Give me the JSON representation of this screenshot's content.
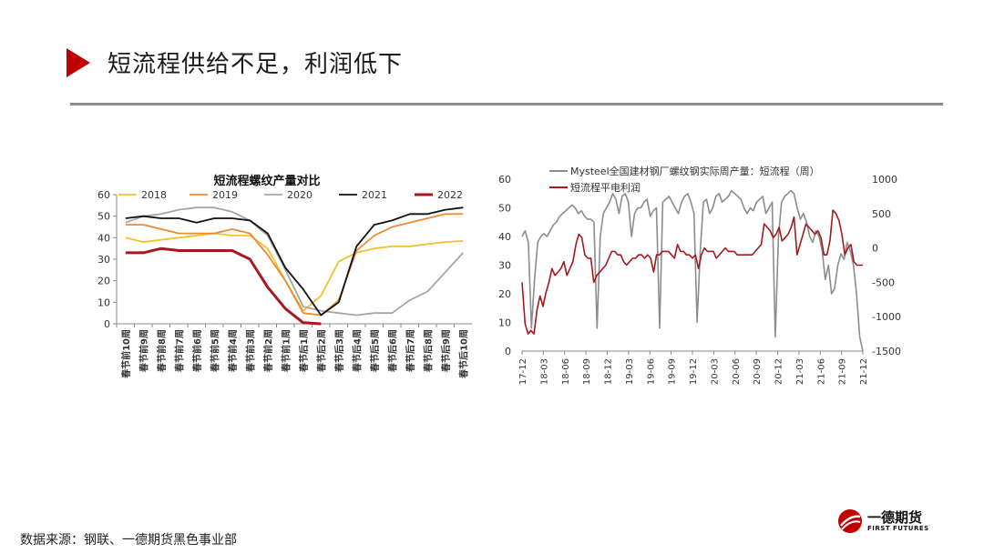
{
  "page": {
    "title": "短流程供给不足，利润低下",
    "source": "数据来源：钢联、一德期货黑色事业部"
  },
  "logo": {
    "cn": "一德期货",
    "en": "FIRST FUTURES"
  },
  "colors": {
    "accent": "#c00000",
    "rule": "#8c8c8c"
  },
  "chart_data": [
    {
      "type": "line",
      "title": "短流程螺纹产量对比",
      "categories": [
        "春节前10周",
        "春节前9周",
        "春节前8周",
        "春节前7周",
        "春节前6周",
        "春节前5周",
        "春节前4周",
        "春节前3周",
        "春节前2周",
        "春节前1周",
        "春节后1周",
        "春节后2周",
        "春节后3周",
        "春节后4周",
        "春节后5周",
        "春节后6周",
        "春节后7周",
        "春节后8周",
        "春节后9周",
        "春节后10周"
      ],
      "ylim": [
        0,
        60
      ],
      "yticks": [
        0,
        10,
        20,
        30,
        40,
        50,
        60
      ],
      "legend_position": "top",
      "series": [
        {
          "name": "2018",
          "color": "#f2c12e",
          "values": [
            40,
            38,
            39,
            40,
            41,
            42,
            41,
            41,
            35,
            20,
            6,
            13,
            29,
            33,
            35,
            36,
            36,
            37,
            38,
            38.5
          ]
        },
        {
          "name": "2019",
          "color": "#ed8a35",
          "values": [
            46,
            46,
            44,
            42,
            42,
            42,
            44,
            42,
            32,
            20,
            5,
            4,
            11,
            34,
            41,
            45,
            47,
            49,
            51,
            51
          ]
        },
        {
          "name": "2020",
          "color": "#a6a6a6",
          "values": [
            47,
            50,
            51,
            53,
            54,
            54,
            52,
            48,
            41,
            25,
            8,
            6,
            5,
            4,
            5,
            5,
            11,
            15,
            24,
            33
          ]
        },
        {
          "name": "2021",
          "color": "#111111",
          "values": [
            49,
            50,
            49,
            49,
            47,
            49,
            49,
            48,
            42,
            26,
            16,
            4,
            10,
            36,
            46,
            48,
            51,
            51,
            53,
            54
          ]
        },
        {
          "name": "2022",
          "color": "#a31a1e",
          "values": [
            33,
            33,
            35,
            34,
            34,
            34,
            34,
            30,
            17,
            7,
            0.5,
            0,
            null,
            null,
            null,
            null,
            null,
            null,
            null,
            null
          ]
        }
      ]
    },
    {
      "type": "line",
      "title": "",
      "x_ticks": [
        "17-12",
        "18-03",
        "18-06",
        "18-09",
        "18-12",
        "19-03",
        "19-06",
        "19-09",
        "19-12",
        "20-03",
        "20-06",
        "20-09",
        "20-12",
        "21-03",
        "21-06",
        "21-09",
        "21-12"
      ],
      "y_left": {
        "ylim": [
          0,
          60
        ],
        "ticks": [
          0,
          10,
          20,
          30,
          40,
          50,
          60
        ]
      },
      "y_right": {
        "ylim": [
          -1500,
          1000
        ],
        "ticks": [
          -1500,
          -1000,
          -500,
          0,
          500,
          1000
        ]
      },
      "legend_position": "top",
      "series": [
        {
          "name": "Mysteel全国建材钢厂螺纹钢实际周产量：短流程（周）",
          "axis": "left",
          "color": "#8c8c8c",
          "values": [
            40,
            42,
            38,
            8,
            25,
            38,
            40,
            41,
            40,
            42,
            44,
            45,
            47,
            48,
            49,
            50,
            51,
            50,
            48,
            49,
            47,
            46,
            46,
            45,
            8,
            40,
            48,
            50,
            52,
            55,
            53,
            48,
            54,
            55,
            52,
            40,
            48,
            50,
            50,
            52,
            53,
            47,
            49,
            50,
            8,
            52,
            53,
            54,
            52,
            50,
            48,
            52,
            54,
            55,
            52,
            48,
            10,
            35,
            52,
            53,
            48,
            50,
            54,
            55,
            52,
            53,
            54,
            56,
            55,
            54,
            53,
            50,
            48,
            50,
            49,
            52,
            53,
            54,
            48,
            50,
            52,
            5,
            40,
            52,
            54,
            55,
            56,
            55,
            50,
            46,
            48,
            45,
            40,
            38,
            42,
            40,
            35,
            25,
            30,
            20,
            22,
            30,
            34,
            32,
            38,
            35,
            30,
            20,
            5,
            0
          ]
        },
        {
          "name": "短流程平电利润",
          "axis": "right",
          "color": "#a31a1e",
          "values": [
            -500,
            -1100,
            -1250,
            -1200,
            -1250,
            -900,
            -700,
            -850,
            -650,
            -500,
            -300,
            -400,
            -350,
            -300,
            -200,
            -400,
            -300,
            -200,
            50,
            200,
            150,
            -100,
            -150,
            -150,
            -500,
            -400,
            -350,
            -300,
            -250,
            -150,
            -50,
            -50,
            -100,
            -100,
            -200,
            -250,
            -200,
            -150,
            -150,
            -100,
            -100,
            -150,
            -100,
            -150,
            -350,
            -100,
            -100,
            -50,
            -50,
            -50,
            -100,
            -150,
            50,
            -50,
            -50,
            -100,
            -100,
            -150,
            -100,
            -300,
            -100,
            0,
            -50,
            -50,
            -50,
            -150,
            -100,
            -50,
            0,
            -50,
            -50,
            -50,
            -100,
            -100,
            -100,
            -100,
            -100,
            -100,
            -50,
            0,
            50,
            350,
            300,
            250,
            150,
            200,
            300,
            100,
            150,
            200,
            300,
            450,
            -100,
            50,
            200,
            350,
            300,
            250,
            200,
            250,
            150,
            -100,
            -100,
            100,
            550,
            500,
            400,
            200,
            -100,
            0,
            50,
            -200,
            -250,
            -250,
            -250
          ]
        }
      ]
    }
  ]
}
